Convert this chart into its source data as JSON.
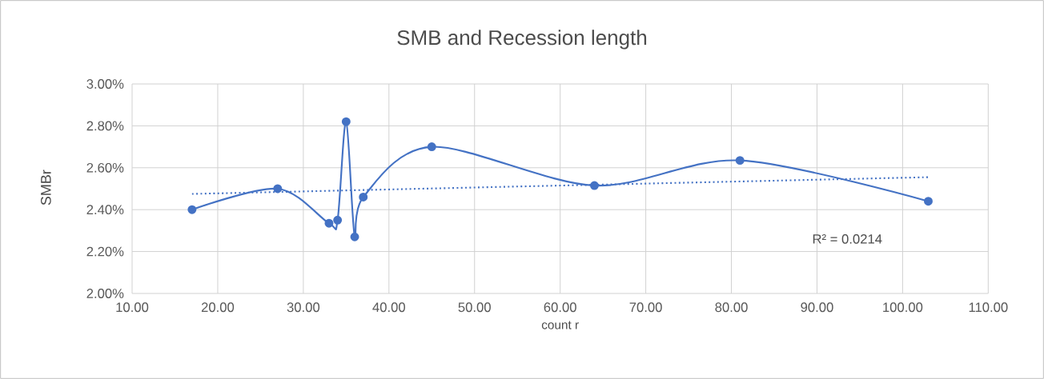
{
  "chart_data": {
    "type": "line",
    "title": "SMB and Recession length",
    "xlabel": "count r",
    "ylabel": "SMBr",
    "x": [
      17,
      27,
      33,
      34,
      35,
      36,
      37,
      45,
      64,
      81,
      103
    ],
    "series": [
      {
        "color": "#4472c4",
        "values": [
          2.4,
          2.5,
          2.335,
          2.35,
          2.82,
          2.27,
          2.46,
          2.7,
          2.515,
          2.635,
          2.44
        ],
        "marker": "circle",
        "line_style": "solid"
      },
      {
        "type": "line",
        "color": "#4472c4",
        "x": [
          17,
          103
        ],
        "values": [
          2.475,
          2.555
        ],
        "marker": "none",
        "line_style": "dotted"
      }
    ],
    "xlim": [
      10,
      110
    ],
    "ylim": [
      2.0,
      3.0
    ],
    "xticks": [
      {
        "value": 10,
        "label": "10.00"
      },
      {
        "value": 20,
        "label": "20.00"
      },
      {
        "value": 30,
        "label": "30.00"
      },
      {
        "value": 40,
        "label": "40.00"
      },
      {
        "value": 50,
        "label": "50.00"
      },
      {
        "value": 60,
        "label": "60.00"
      },
      {
        "value": 70,
        "label": "70.00"
      },
      {
        "value": 80,
        "label": "80.00"
      },
      {
        "value": 90,
        "label": "90.00"
      },
      {
        "value": 100,
        "label": "100.00"
      },
      {
        "value": 110,
        "label": "110.00"
      }
    ],
    "yticks": [
      {
        "value": 2.0,
        "label": "2.00%"
      },
      {
        "value": 2.2,
        "label": "2.20%"
      },
      {
        "value": 2.4,
        "label": "2.40%"
      },
      {
        "value": 2.6,
        "label": "2.60%"
      },
      {
        "value": 2.8,
        "label": "2.80%"
      },
      {
        "value": 3.0,
        "label": "3.00%"
      }
    ],
    "grid": true,
    "annotations": [
      "R² = 0.0214"
    ]
  }
}
